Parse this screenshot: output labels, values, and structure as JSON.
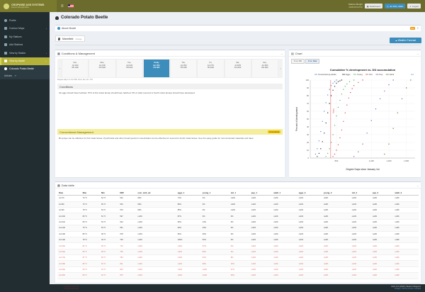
{
  "brand": {
    "name": "CROPWISE AGS SYSTEMS",
    "tagline": "science with agriculture"
  },
  "user": {
    "name": "Stefano Borghi",
    "sub": "ADMINISTRATOR"
  },
  "topbar": {
    "dashboard": "Dashboard",
    "date": "Jul 15th, 2020",
    "logout": "Logout"
  },
  "sidebar": {
    "items": [
      {
        "label": "Profile"
      },
      {
        "label": "Contour Maps"
      },
      {
        "label": "My Stations"
      },
      {
        "label": "Add Stations"
      },
      {
        "label": "View by Station"
      },
      {
        "label": "View by Model"
      }
    ],
    "sub_active": "Colorado Potato Beetle",
    "sub_other": "Articles"
  },
  "page": {
    "title": "Colorado Potato Beetle",
    "about": "About Model",
    "new_badge": "new"
  },
  "location": {
    "name": "Mansfield",
    "change": "change"
  },
  "weather_btn": "Weather Forecast",
  "conditions": {
    "title": "Conditions & Management",
    "days": [
      {
        "name": "Wed,",
        "date": "Jul 8th",
        "dd": "543 DDF"
      },
      {
        "name": "Thu,",
        "date": "Jul 9th",
        "dd": "570 DDF"
      },
      {
        "name": "Fri,",
        "date": "Jul 10th",
        "dd": "597 DDF"
      },
      {
        "name": "Sat,",
        "date": "Jul 11th",
        "dd": "624 DDF"
      },
      {
        "name": "Sun,",
        "date": "Jul 12th",
        "dd": "651 DDF"
      },
      {
        "name": "Mon,",
        "date": "Jul 13th",
        "dd": "678 DDF"
      },
      {
        "name": "Tue,",
        "date": "Jul 14th",
        "dd": "705 DDF"
      },
      {
        "name": "Today",
        "date": "Jul 15th",
        "dd": "734 DDF"
      },
      {
        "name": "Thu,",
        "date": "Jul 16th",
        "dd": "756 DDF"
      },
      {
        "name": "Fri,",
        "date": "Jul 17th",
        "dd": "784 DDF"
      },
      {
        "name": "Sat,",
        "date": "Jul 18th",
        "dd": "811 DDF"
      },
      {
        "name": "Sun,",
        "date": "Jul 19th",
        "dd": "843 DDF"
      },
      {
        "name": "Mon,",
        "date": "Jul 20th",
        "dd": "875 DDF"
      },
      {
        "name": "Tue,",
        "date": "Jul 21st",
        "dd": "903 DDF"
      },
      {
        "name": "Wed,",
        "date": "Jul 22nd",
        "dd": "931 DDF"
      }
    ],
    "dd_note": "Degree days on Jul 15th since Jan 1st: 734",
    "cond_head": "Conditions",
    "cond_text": "All eggs should have hatched. 67% of first instar larvae should have hatched. 0% of older (second to fourth instar larvae) should have developed.",
    "cm_head": "Conventional Management",
    "cm_badge": "Conventional",
    "cm_text": "Bt sprays can be effective for first instar larvae. Pyrethroids and other broad spectrum insecticides can be effective for second to fourth instar larvae. See the spray guide for recommended materials and rates."
  },
  "chart_panel": {
    "title": "Chart",
    "tab1": "% vs. DD",
    "tab2": "% vs. Date"
  },
  "chart_data": {
    "type": "scatter",
    "title": "Cumulative % development vs. DD accumulation",
    "xlabel": "Degree Days since January 1st",
    "ylabel": "Percent of development",
    "xlim": [
      500,
      1700
    ],
    "ylim": [
      0,
      100
    ],
    "xticks": [
      "800",
      "1,200",
      "1,400",
      "1,600"
    ],
    "yticks": [
      "0",
      "10",
      "20",
      "30",
      "40",
      "50",
      "60",
      "70",
      "80",
      "90",
      "100"
    ],
    "today_dd": 734,
    "today_label": "Today",
    "legend": [
      "Overwintering Adults",
      "Eggs",
      "Young",
      "Old",
      "Pup",
      "Adult"
    ],
    "page_label": "1/2",
    "colors": {
      "ow": "#5b8fd6",
      "eggs": "#333333",
      "young": "#5cb85c",
      "old": "#e05050",
      "pup": "#9b59b6",
      "adult": "#8a6d3b"
    },
    "series": [
      {
        "name": "Overwintering Adults",
        "x": [
          560,
          580,
          600,
          620,
          640,
          660,
          680,
          700,
          720,
          740,
          760,
          780,
          800
        ],
        "y": [
          5,
          12,
          22,
          34,
          47,
          60,
          71,
          81,
          88,
          93,
          96,
          98,
          100
        ]
      },
      {
        "name": "Eggs",
        "x": [
          580,
          600,
          620,
          640,
          660,
          680,
          700,
          720,
          740,
          760,
          780,
          800,
          820,
          840,
          860
        ],
        "y": [
          2,
          6,
          12,
          21,
          32,
          45,
          58,
          70,
          80,
          87,
          92,
          96,
          98,
          99,
          100
        ]
      },
      {
        "name": "Young",
        "x": [
          680,
          700,
          720,
          740,
          760,
          780,
          800,
          820,
          840,
          860,
          880,
          900,
          920,
          950,
          1000
        ],
        "y": [
          2,
          6,
          12,
          20,
          30,
          42,
          54,
          65,
          74,
          82,
          88,
          92,
          95,
          98,
          100
        ]
      },
      {
        "name": "Old",
        "x": [
          760,
          780,
          800,
          820,
          840,
          860,
          880,
          900,
          920,
          940,
          960,
          980,
          1000,
          1050,
          1100
        ],
        "y": [
          2,
          5,
          10,
          17,
          26,
          36,
          47,
          58,
          68,
          77,
          84,
          89,
          93,
          97,
          100
        ]
      },
      {
        "name": "Pup",
        "x": [
          1000,
          1050,
          1100,
          1150,
          1200,
          1250,
          1300,
          1350,
          1400,
          1450
        ],
        "y": [
          2,
          8,
          18,
          32,
          48,
          63,
          76,
          86,
          94,
          100
        ]
      },
      {
        "name": "Adult",
        "x": [
          1350,
          1400,
          1450,
          1500,
          1550,
          1600,
          1650
        ],
        "y": [
          5,
          18,
          38,
          58,
          76,
          90,
          100
        ]
      }
    ]
  },
  "table": {
    "title": "Data table",
    "headers": [
      "Date",
      "Max",
      "Min",
      "DDF",
      "over_wint_ad",
      "eggs_1",
      "young_1",
      "old_1",
      "pup_1",
      "adult_1",
      "eggs_2",
      "young_2",
      "old_2",
      "pup_2",
      "adult_2"
    ],
    "rows": [
      [
        "Jul 7th",
        "75 °F",
        "54 °F",
        "522",
        "99%",
        "74%",
        "0%",
        "null%",
        "null%",
        "null%",
        "null%",
        "null%",
        "null%",
        "null%",
        "null%"
      ],
      [
        "Jul 8th",
        "76 °F",
        "60 °F",
        "543",
        "99%",
        "80%",
        "0%",
        "null%",
        "null%",
        "null%",
        "null%",
        "null%",
        "null%",
        "null%",
        "null%"
      ],
      [
        "Jul 9th",
        "78 °F",
        "53 °F",
        "570",
        "99%",
        "85%",
        "0%",
        "null%",
        "null%",
        "null%",
        "null%",
        "null%",
        "null%",
        "null%",
        "null%"
      ],
      [
        "Jul 10th",
        "80 °F",
        "52 °F",
        "597",
        "null%",
        "87%",
        "9%",
        "0%",
        "null%",
        "null%",
        "null%",
        "null%",
        "null%",
        "null%",
        "null%"
      ],
      [
        "Jul 11th",
        "83 °F",
        "54 °F",
        "624",
        "null%",
        "90%",
        "14%",
        "0%",
        "null%",
        "null%",
        "null%",
        "null%",
        "null%",
        "null%",
        "null%"
      ],
      [
        "Jul 12th",
        "75 °F",
        "53 °F",
        "651",
        "null%",
        "93%",
        "23%",
        "0%",
        "null%",
        "null%",
        "null%",
        "null%",
        "null%",
        "null%",
        "null%"
      ],
      [
        "Jul 13th",
        "80 °F",
        "48 °F",
        "678",
        "null%",
        "96%",
        "36%",
        "0%",
        "null%",
        "null%",
        "null%",
        "null%",
        "null%",
        "null%",
        "null%"
      ],
      [
        "Jul 14th",
        "78 °F",
        "49 °F",
        "705",
        "null%",
        "100%",
        "52%",
        "0%",
        "null%",
        "null%",
        "null%",
        "null%",
        "null%",
        "null%",
        "null%"
      ],
      [
        "Jul 15th",
        "81 °F",
        "50 °F",
        "734",
        "null%",
        "null%",
        "67%",
        "0%",
        "null%",
        "null%",
        "null%",
        "null%",
        "null%",
        "null%",
        "null%"
      ],
      [
        "Jul 16th",
        "85 °F",
        "58 °F",
        "756",
        "null%",
        "null%",
        "80%",
        "3%",
        "null%",
        "null%",
        "null%",
        "null%",
        "null%",
        "null%",
        "null%"
      ],
      [
        "Jul 17th",
        "87 °F",
        "56 °F",
        "784",
        "null%",
        "null%",
        "91%",
        "8%",
        "null%",
        "null%",
        "null%",
        "null%",
        "null%",
        "null%",
        "null%"
      ],
      [
        "Jul 18th",
        "86 °F",
        "60 °F",
        "811",
        "null%",
        "null%",
        "99%",
        "15%",
        "null%",
        "null%",
        "null%",
        "null%",
        "null%",
        "null%",
        "null%"
      ],
      [
        "Jul 19th",
        "84 °F",
        "61 °F",
        "843",
        "null%",
        "null%",
        "null%",
        "27%",
        "null%",
        "null%",
        "null%",
        "null%",
        "null%",
        "null%",
        "null%"
      ],
      [
        "Jul 20th",
        "86 °F",
        "62 °F",
        "875",
        "null%",
        "null%",
        "null%",
        "39%",
        "null%",
        "null%",
        "null%",
        "null%",
        "null%",
        "null%",
        "null%"
      ]
    ],
    "forecast_from": 8
  },
  "footer": {
    "left1": "Cropwise Ags Sys",
    "left2": "All rights reserved",
    "right1": "DAS v5.4 (2020) | Board of Regents",
    "right2": "Privacy | Terms of Use | Contact"
  }
}
